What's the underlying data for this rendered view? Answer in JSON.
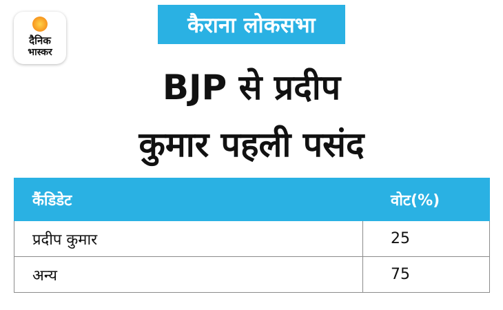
{
  "brand": {
    "name_line1": "दैनिक",
    "name_line2": "भास्कर",
    "accent": "#f7941d"
  },
  "tag": "कैराना लोकसभा",
  "headline": {
    "line1": "BJP से प्रदीप",
    "line2": "कुमार पहली पसंद"
  },
  "table": {
    "headers": [
      "कैंडिडेट",
      "वोट(%)"
    ],
    "rows": [
      {
        "candidate": "प्रदीप कुमार",
        "vote": "25"
      },
      {
        "candidate": "अन्य",
        "vote": "75"
      }
    ]
  },
  "colors": {
    "header_blue": "#2ab1e3",
    "text": "#111111",
    "border": "#8a8a8a"
  }
}
